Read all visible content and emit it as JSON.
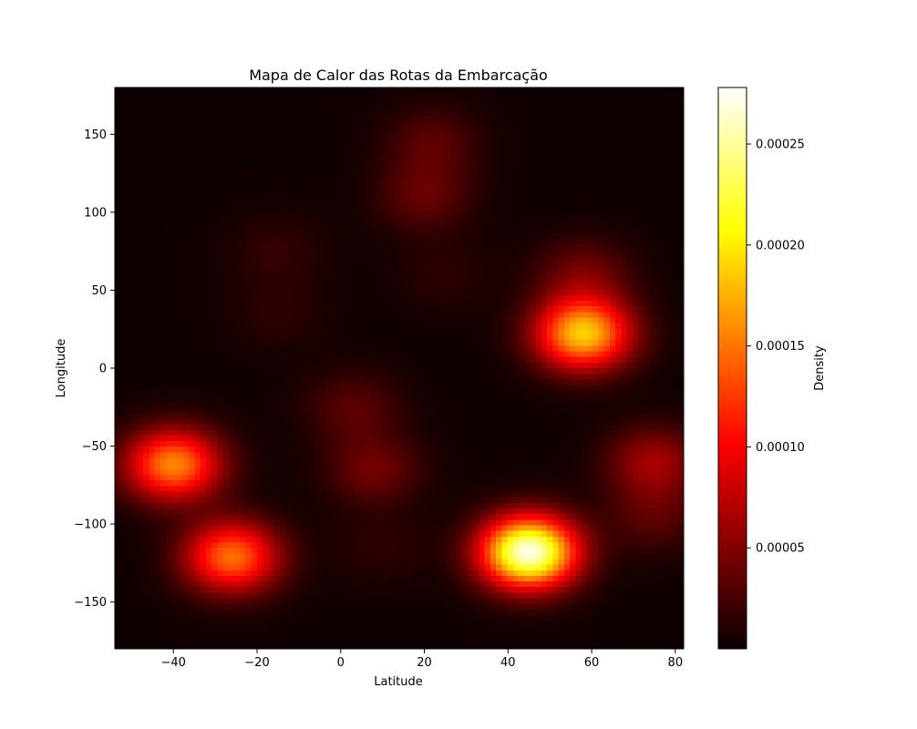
{
  "chart_data": {
    "type": "heatmap",
    "title": "Mapa de Calor das Rotas da Embarcação",
    "xlabel": "Latitude",
    "ylabel": "Longitude",
    "xlim": [
      -54,
      82
    ],
    "ylim": [
      -180,
      180
    ],
    "x_ticks": [
      -40,
      -20,
      0,
      20,
      40,
      60,
      80
    ],
    "x_tick_labels": [
      "−40",
      "−20",
      "0",
      "20",
      "40",
      "60",
      "80"
    ],
    "y_ticks": [
      150,
      100,
      50,
      0,
      -50,
      -100,
      -150
    ],
    "y_tick_labels": [
      "150",
      "100",
      "50",
      "0",
      "−50",
      "−100",
      "−150"
    ],
    "colormap": "hot",
    "colorbar": {
      "label": "Density",
      "range": [
        0.0,
        0.000278
      ],
      "ticks": [
        5e-05,
        0.0001,
        0.00015,
        0.0002,
        0.00025
      ],
      "tick_labels": [
        "0.00005",
        "0.00010",
        "0.00015",
        "0.00020",
        "0.00025"
      ]
    },
    "density_peaks": [
      {
        "x": 45,
        "y": -118,
        "value": 0.00027
      },
      {
        "x": 58,
        "y": 22,
        "value": 0.000185
      },
      {
        "x": -40,
        "y": -62,
        "value": 0.000155
      },
      {
        "x": -26,
        "y": -121,
        "value": 0.000145
      },
      {
        "x": 75,
        "y": -60,
        "value": 6e-05
      },
      {
        "x": 75,
        "y": -95,
        "value": 3e-05
      },
      {
        "x": 58,
        "y": 60,
        "value": 4e-05
      },
      {
        "x": 8,
        "y": -65,
        "value": 4e-05
      },
      {
        "x": 3,
        "y": -25,
        "value": 3e-05
      },
      {
        "x": 20,
        "y": 110,
        "value": 3.5e-05
      },
      {
        "x": 22,
        "y": 145,
        "value": 3e-05
      },
      {
        "x": -15,
        "y": 75,
        "value": 1.5e-05
      },
      {
        "x": -15,
        "y": 35,
        "value": 1.2e-05
      },
      {
        "x": 25,
        "y": 60,
        "value": 1.2e-05
      },
      {
        "x": 10,
        "y": -115,
        "value": 1.2e-05
      }
    ],
    "grid": false
  }
}
